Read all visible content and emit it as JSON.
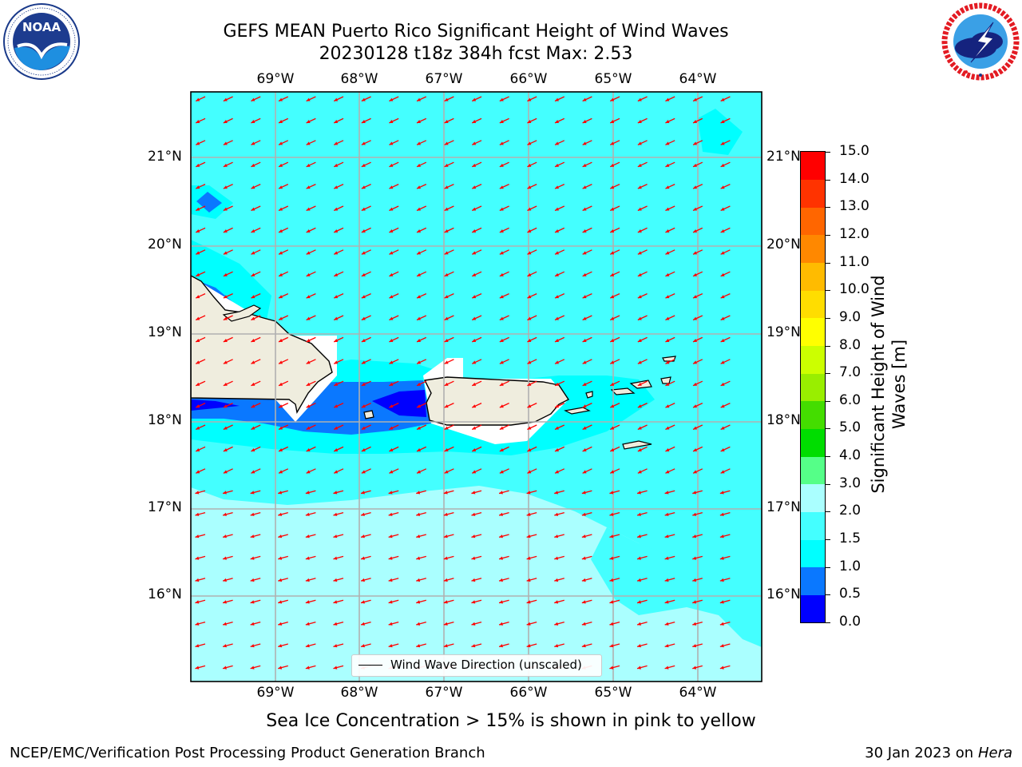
{
  "title": {
    "line1": "GEFS MEAN Puerto Rico Significant Height of Wind Waves",
    "line2": "20230128 t18z 384h fcst   Max: 2.53"
  },
  "logos": {
    "noara_text": "NOAA",
    "noaa_ring": "NATIONAL OCEANIC AND ATMOSPHERIC ADMINISTRATION · U.S. DEPARTMENT OF COMMERCE",
    "nws_ring": "NATIONAL WEATHER SERVICE"
  },
  "map": {
    "lon_labels": [
      "69°W",
      "68°W",
      "67°W",
      "66°W",
      "65°W",
      "64°W"
    ],
    "lat_labels": [
      "21°N",
      "20°N",
      "19°N",
      "18°N",
      "17°N",
      "16°N"
    ],
    "legend_label": "Wind Wave Direction (unscaled)",
    "arrow_color": "#ff0000",
    "land_color": "#efedde",
    "field_color": "#44ffff"
  },
  "colorbar": {
    "title": "Significant Height of Wind Waves [m]",
    "ticks": [
      "0.0",
      "0.5",
      "1.0",
      "1.5",
      "2.0",
      "3.0",
      "4.0",
      "5.0",
      "6.0",
      "7.0",
      "8.0",
      "9.0",
      "10.0",
      "11.0",
      "12.0",
      "13.0",
      "14.0",
      "15.0"
    ],
    "colors": [
      "#0000ff",
      "#0a78ff",
      "#00ffff",
      "#44ffff",
      "#aaffff",
      "#55ff88",
      "#00dd00",
      "#44dd00",
      "#99ee00",
      "#ccff00",
      "#ffff00",
      "#ffdd00",
      "#ffbb00",
      "#ff8800",
      "#ff6600",
      "#ff3300",
      "#ff0000"
    ]
  },
  "caption": "Sea Ice Concentration > 15% is shown in pink to yellow",
  "footer": {
    "left": "NCEP/EMC/Verification Post Processing Product Generation Branch",
    "right_date": "30 Jan 2023 on ",
    "right_host": "Hera"
  }
}
